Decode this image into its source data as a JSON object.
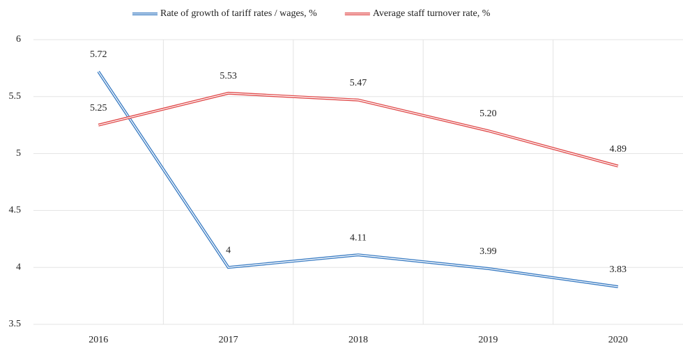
{
  "chart_data": {
    "type": "line",
    "categories": [
      "2016",
      "2017",
      "2018",
      "2019",
      "2020"
    ],
    "series": [
      {
        "name": "Rate of growth of tariff rates / wages, %",
        "color": "#3a7cc3",
        "values": [
          5.72,
          4,
          4.11,
          3.99,
          3.83
        ]
      },
      {
        "name": "Average staff turnover rate, %",
        "color": "#e04a4a",
        "values": [
          5.25,
          5.53,
          5.47,
          5.2,
          4.89
        ],
        "value_labels": [
          "5.25",
          "5.53",
          "5.47",
          "5.20",
          "4.89"
        ]
      }
    ],
    "ylim": [
      3.5,
      6
    ],
    "yticks": [
      3.5,
      4,
      4.5,
      5,
      5.5,
      6
    ],
    "grid": true,
    "legend": "top"
  }
}
